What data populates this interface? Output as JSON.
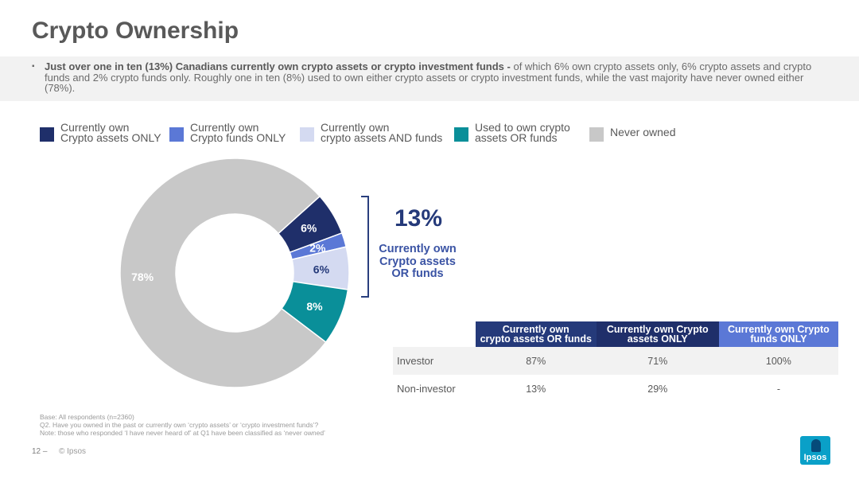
{
  "slide": {
    "title": "Crypto Ownership",
    "summary_bold": "Just over one in ten (13%) Canadians currently own crypto assets or crypto investment funds - ",
    "summary_rest": "of which 6% own crypto assets only, 6% crypto assets and crypto funds and 2% crypto funds only.  Roughly one in ten (8%) used to own either crypto assets or crypto investment funds, while the vast majority have never owned either (78%).",
    "bullet": "▪"
  },
  "legend": [
    {
      "line1": "Currently own",
      "line2": "Crypto assets ONLY",
      "color": "#1f2f6a"
    },
    {
      "line1": "Currently own",
      "line2": "Crypto funds ONLY",
      "color": "#5b78d6"
    },
    {
      "line1": "Currently own",
      "line2": "crypto assets AND funds",
      "color": "#d4daf1"
    },
    {
      "line1": "Used to own crypto",
      "line2": "assets OR funds",
      "color": "#0a8f99"
    },
    {
      "line1": "Never owned",
      "line2": "",
      "color": "#c8c8c8"
    }
  ],
  "chart_data": {
    "type": "pie",
    "subtype": "donut",
    "slices": [
      {
        "name": "Currently own Crypto assets ONLY",
        "value": 6,
        "label": "6%",
        "color": "#1f2f6a",
        "label_color": "#ffffff"
      },
      {
        "name": "Currently own Crypto funds ONLY",
        "value": 2,
        "label": "2%",
        "color": "#5b78d6",
        "label_color": "#ffffff"
      },
      {
        "name": "Currently own crypto assets AND funds",
        "value": 6,
        "label": "6%",
        "color": "#d4daf1",
        "label_color": "#253a7a"
      },
      {
        "name": "Used to own crypto assets OR funds",
        "value": 8,
        "label": "8%",
        "color": "#0a8f99",
        "label_color": "#ffffff"
      },
      {
        "name": "Never owned",
        "value": 78,
        "label": "78%",
        "color": "#c8c8c8",
        "label_color": "#ffffff"
      }
    ],
    "legend_position": "top"
  },
  "callout": {
    "value": "13%",
    "line1": "Currently own",
    "line2": "Crypto assets",
    "line3": "OR funds"
  },
  "table": {
    "headers": [
      {
        "line1": "Currently own",
        "line2": "crypto assets OR funds"
      },
      {
        "line1": "Currently own Crypto",
        "line2": "assets ONLY"
      },
      {
        "line1": "Currently own Crypto",
        "line2": "funds ONLY"
      }
    ],
    "rows": [
      {
        "label": "Investor",
        "cells": [
          "87%",
          "71%",
          "100%"
        ]
      },
      {
        "label": "Non-investor",
        "cells": [
          "13%",
          "29%",
          "-"
        ]
      }
    ]
  },
  "footnote": {
    "line1": "Base: All respondents (n=2360)",
    "line2": "Q2. Have you owned in the past or currently own ‘crypto assets’ or ‘crypto investment funds’?",
    "line3": "Note: those who responded ‘I have never heard of’ at Q1 have been classified as ‘never owned’"
  },
  "footer": {
    "page": "12 –",
    "copyright": "© Ipsos",
    "logo_text": "Ipsos"
  }
}
